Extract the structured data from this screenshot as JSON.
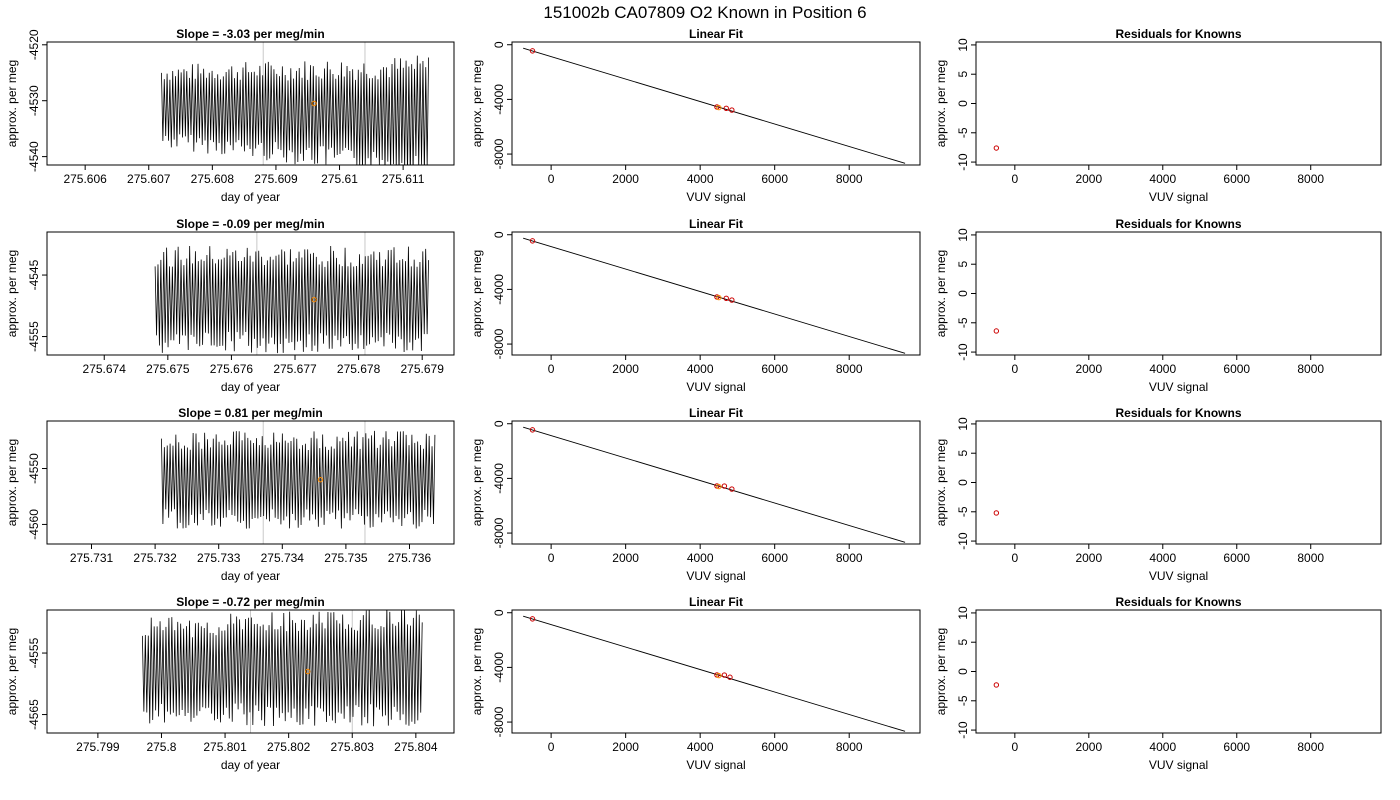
{
  "title": "151002b     CA07809   O2 Known in Position  6",
  "chart_data": [
    {
      "type": "line",
      "title": "Slope =  -3.03  per meg/min",
      "xlabel": "day of year",
      "ylabel": "approx. per meg",
      "xlim": [
        275.6054,
        275.6118
      ],
      "ylim": [
        -4541.5,
        -4519.5
      ],
      "xticks": [
        275.606,
        275.607,
        275.608,
        275.609,
        275.61,
        275.611
      ],
      "yticks": [
        -4540,
        -4530,
        -4520
      ],
      "signal": {
        "x_start": 275.6072,
        "x_end": 275.6114,
        "center": -4531,
        "center_end": -4533,
        "amplitude": 6,
        "amp_end": 9,
        "cycles": 95
      },
      "vlines": [
        275.6088,
        275.6104
      ],
      "marker": {
        "x": 275.6096,
        "y": -4530.5,
        "color": "#ff8c00"
      }
    },
    {
      "type": "scatter",
      "title": "Linear Fit",
      "xlabel": "VUV signal",
      "ylabel": "approx. per meg",
      "xlim": [
        -1050,
        9900
      ],
      "ylim": [
        -8800,
        200
      ],
      "xticks": [
        0,
        2000,
        4000,
        6000,
        8000
      ],
      "yticks": [
        -8000,
        -4000,
        0
      ],
      "fit_line": {
        "x": [
          -750,
          9500
        ],
        "y": [
          -250,
          -8680
        ]
      },
      "points": [
        {
          "x": -500,
          "y": -450,
          "color": "#cc0000"
        },
        {
          "x": 4450,
          "y": -4550,
          "color": "#cc0000"
        },
        {
          "x": 4500,
          "y": -4600,
          "color": "#ff8c00"
        },
        {
          "x": 4700,
          "y": -4650,
          "color": "#cc0000"
        },
        {
          "x": 4850,
          "y": -4780,
          "color": "#cc0000"
        }
      ]
    },
    {
      "type": "scatter",
      "title": "Residuals for Knowns",
      "xlabel": "VUV signal",
      "ylabel": "approx. per meg",
      "xlim": [
        -1050,
        9900
      ],
      "ylim": [
        -10.5,
        10.5
      ],
      "xticks": [
        0,
        2000,
        4000,
        6000,
        8000
      ],
      "yticks": [
        -10,
        -5,
        0,
        5,
        10
      ],
      "points": [
        {
          "x": -500,
          "y": -7.6,
          "color": "#cc0000"
        }
      ]
    },
    {
      "type": "line",
      "title": "Slope =  -0.09  per meg/min",
      "xlabel": "day of year",
      "ylabel": "approx. per meg",
      "xlim": [
        275.6731,
        275.6795
      ],
      "ylim": [
        -4558,
        -4538
      ],
      "xticks": [
        275.674,
        275.675,
        275.676,
        275.677,
        275.678,
        275.679
      ],
      "yticks": [
        -4555,
        -4545
      ],
      "signal": {
        "x_start": 275.6748,
        "x_end": 275.6791,
        "center": -4549,
        "center_end": -4549,
        "amplitude": 7,
        "amp_end": 7,
        "cycles": 95
      },
      "vlines": [
        275.6764,
        275.6781
      ],
      "marker": {
        "x": 275.6773,
        "y": -4549,
        "color": "#ff8c00"
      }
    },
    {
      "type": "scatter",
      "title": "Linear Fit",
      "xlabel": "VUV signal",
      "ylabel": "approx. per meg",
      "xlim": [
        -1050,
        9900
      ],
      "ylim": [
        -8800,
        200
      ],
      "xticks": [
        0,
        2000,
        4000,
        6000,
        8000
      ],
      "yticks": [
        -8000,
        -4000,
        0
      ],
      "fit_line": {
        "x": [
          -750,
          9500
        ],
        "y": [
          -250,
          -8680
        ]
      },
      "points": [
        {
          "x": -500,
          "y": -450,
          "color": "#cc0000"
        },
        {
          "x": 4450,
          "y": -4550,
          "color": "#cc0000"
        },
        {
          "x": 4500,
          "y": -4600,
          "color": "#ff8c00"
        },
        {
          "x": 4700,
          "y": -4650,
          "color": "#cc0000"
        },
        {
          "x": 4850,
          "y": -4780,
          "color": "#cc0000"
        }
      ]
    },
    {
      "type": "scatter",
      "title": "Residuals for Knowns",
      "xlabel": "VUV signal",
      "ylabel": "approx. per meg",
      "xlim": [
        -1050,
        9900
      ],
      "ylim": [
        -10.5,
        10.5
      ],
      "xticks": [
        0,
        2000,
        4000,
        6000,
        8000
      ],
      "yticks": [
        -10,
        -5,
        0,
        5,
        10
      ],
      "points": [
        {
          "x": -500,
          "y": -6.4,
          "color": "#cc0000"
        }
      ]
    },
    {
      "type": "line",
      "title": "Slope =  0.81  per meg/min",
      "xlabel": "day of year",
      "ylabel": "approx. per meg",
      "xlim": [
        275.7303,
        275.7367
      ],
      "ylim": [
        -4563.5,
        -4541.5
      ],
      "xticks": [
        275.731,
        275.732,
        275.733,
        275.734,
        275.735,
        275.736
      ],
      "yticks": [
        -4560,
        -4550
      ],
      "signal": {
        "x_start": 275.7321,
        "x_end": 275.7364,
        "center": -4552,
        "center_end": -4552,
        "amplitude": 7,
        "amp_end": 7,
        "cycles": 95
      },
      "vlines": [
        275.7337,
        275.7353
      ],
      "marker": {
        "x": 275.7346,
        "y": -4552,
        "color": "#ff8c00"
      }
    },
    {
      "type": "scatter",
      "title": "Linear Fit",
      "xlabel": "VUV signal",
      "ylabel": "approx. per meg",
      "xlim": [
        -1050,
        9900
      ],
      "ylim": [
        -8800,
        200
      ],
      "xticks": [
        0,
        2000,
        4000,
        6000,
        8000
      ],
      "yticks": [
        -8000,
        -4000,
        0
      ],
      "fit_line": {
        "x": [
          -750,
          9500
        ],
        "y": [
          -250,
          -8680
        ]
      },
      "points": [
        {
          "x": -500,
          "y": -450,
          "color": "#cc0000"
        },
        {
          "x": 4450,
          "y": -4550,
          "color": "#cc0000"
        },
        {
          "x": 4500,
          "y": -4600,
          "color": "#ff8c00"
        },
        {
          "x": 4650,
          "y": -4560,
          "color": "#cc0000"
        },
        {
          "x": 4850,
          "y": -4780,
          "color": "#cc0000"
        }
      ]
    },
    {
      "type": "scatter",
      "title": "Residuals for Knowns",
      "xlabel": "VUV signal",
      "ylabel": "approx. per meg",
      "xlim": [
        -1050,
        9900
      ],
      "ylim": [
        -10.5,
        10.5
      ],
      "xticks": [
        0,
        2000,
        4000,
        6000,
        8000
      ],
      "yticks": [
        -10,
        -5,
        0,
        5,
        10
      ],
      "points": [
        {
          "x": -500,
          "y": -5.2,
          "color": "#cc0000"
        }
      ]
    },
    {
      "type": "line",
      "title": "Slope =  -0.72  per meg/min",
      "xlabel": "day of year",
      "ylabel": "approx. per meg",
      "xlim": [
        275.7982,
        275.8046
      ],
      "ylim": [
        -4568,
        -4548
      ],
      "xticks": [
        275.799,
        275.8,
        275.801,
        275.802,
        275.803,
        275.804
      ],
      "yticks": [
        -4565,
        -4555
      ],
      "signal": {
        "x_start": 275.7997,
        "x_end": 275.8041,
        "center": -4558,
        "center_end": -4557,
        "amplitude": 7,
        "amp_end": 8,
        "cycles": 95
      },
      "vlines": [
        275.8014,
        275.803
      ],
      "marker": {
        "x": 275.8023,
        "y": -4558,
        "color": "#ff8c00"
      }
    },
    {
      "type": "scatter",
      "title": "Linear Fit",
      "xlabel": "VUV signal",
      "ylabel": "approx. per meg",
      "xlim": [
        -1050,
        9900
      ],
      "ylim": [
        -8800,
        200
      ],
      "xticks": [
        0,
        2000,
        4000,
        6000,
        8000
      ],
      "yticks": [
        -8000,
        -4000,
        0
      ],
      "fit_line": {
        "x": [
          -750,
          9500
        ],
        "y": [
          -250,
          -8680
        ]
      },
      "points": [
        {
          "x": -500,
          "y": -450,
          "color": "#cc0000"
        },
        {
          "x": 4450,
          "y": -4550,
          "color": "#cc0000"
        },
        {
          "x": 4500,
          "y": -4600,
          "color": "#ff8c00"
        },
        {
          "x": 4650,
          "y": -4560,
          "color": "#cc0000"
        },
        {
          "x": 4800,
          "y": -4720,
          "color": "#cc0000"
        }
      ]
    },
    {
      "type": "scatter",
      "title": "Residuals for Knowns",
      "xlabel": "VUV signal",
      "ylabel": "approx. per meg",
      "xlim": [
        -1050,
        9900
      ],
      "ylim": [
        -10.5,
        10.5
      ],
      "xticks": [
        0,
        2000,
        4000,
        6000,
        8000
      ],
      "yticks": [
        -10,
        -5,
        0,
        5,
        10
      ],
      "points": [
        {
          "x": -500,
          "y": -2.3,
          "color": "#cc0000"
        }
      ]
    }
  ]
}
